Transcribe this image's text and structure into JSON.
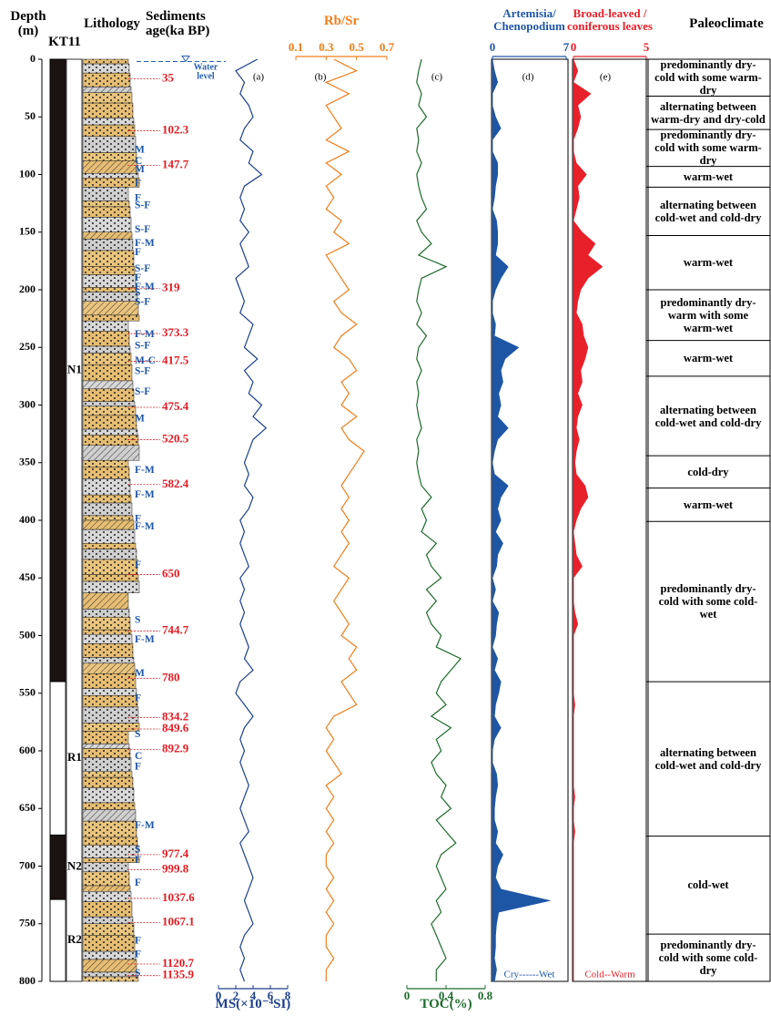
{
  "chart_data": {
    "type": "well-log",
    "depth_title": "Depth\n(m)",
    "core_title": "KT11",
    "lithology_title": "Lithology",
    "age_title": "Sediments\nage(ka BP)",
    "paleoclimate_title": "Paleoclimate",
    "ylim": [
      0,
      800
    ],
    "yticks": [
      0,
      50,
      100,
      150,
      200,
      250,
      300,
      350,
      400,
      450,
      500,
      550,
      600,
      650,
      700,
      750,
      800
    ],
    "depth": [
      0,
      10,
      20,
      30,
      40,
      50,
      60,
      70,
      80,
      90,
      100,
      110,
      120,
      130,
      140,
      150,
      160,
      170,
      180,
      190,
      200,
      210,
      220,
      230,
      240,
      250,
      260,
      270,
      280,
      290,
      300,
      310,
      320,
      330,
      340,
      350,
      360,
      370,
      380,
      390,
      400,
      410,
      420,
      430,
      440,
      450,
      460,
      470,
      480,
      490,
      500,
      510,
      520,
      530,
      540,
      550,
      560,
      570,
      580,
      590,
      600,
      610,
      620,
      630,
      640,
      650,
      660,
      670,
      680,
      690,
      700,
      710,
      720,
      730,
      740,
      750,
      760,
      770,
      780,
      790,
      800
    ],
    "series": [
      {
        "name": "MS(×10⁻⁴SI)",
        "letter": "(a)",
        "color": "#1b3f8b",
        "type": "line",
        "axis": "bottom",
        "xlim": [
          0,
          8
        ],
        "xticks": [
          0,
          2,
          4,
          6,
          8
        ],
        "values": [
          4.5,
          2,
          3,
          2.5,
          3.5,
          4,
          3,
          2.5,
          4,
          3.5,
          5,
          3,
          2.5,
          3,
          2.5,
          3.5,
          2.5,
          3,
          3.5,
          2,
          2.5,
          3,
          2.5,
          4,
          3.5,
          3,
          4.5,
          3,
          4,
          3.5,
          5,
          4,
          5.5,
          4,
          3.5,
          3,
          3.5,
          3,
          4,
          3.5,
          2.5,
          3,
          2.5,
          3,
          3.5,
          2.5,
          3,
          2.5,
          3,
          2.5,
          3,
          3.5,
          3,
          4,
          2.5,
          2,
          3,
          4,
          3,
          2.5,
          3,
          2.5,
          3,
          3.5,
          3,
          2.5,
          3,
          3.5,
          2.5,
          3,
          3.5,
          4,
          3.5,
          3,
          3.5,
          4,
          3,
          2.5,
          3,
          2.5,
          3
        ]
      },
      {
        "name": "Rb/Sr",
        "letter": "(b)",
        "color": "#f07d1a",
        "type": "line",
        "axis": "top",
        "xlim": [
          0.1,
          0.7
        ],
        "xticks": [
          0.1,
          0.3,
          0.5,
          0.7
        ],
        "values": [
          0.35,
          0.5,
          0.3,
          0.45,
          0.3,
          0.35,
          0.4,
          0.3,
          0.45,
          0.3,
          0.4,
          0.3,
          0.35,
          0.3,
          0.4,
          0.35,
          0.45,
          0.3,
          0.35,
          0.4,
          0.45,
          0.35,
          0.4,
          0.5,
          0.4,
          0.35,
          0.45,
          0.5,
          0.4,
          0.45,
          0.4,
          0.5,
          0.4,
          0.45,
          0.55,
          0.5,
          0.45,
          0.4,
          0.45,
          0.4,
          0.45,
          0.4,
          0.45,
          0.4,
          0.35,
          0.45,
          0.4,
          0.35,
          0.4,
          0.45,
          0.4,
          0.5,
          0.45,
          0.5,
          0.4,
          0.45,
          0.5,
          0.35,
          0.3,
          0.35,
          0.3,
          0.35,
          0.4,
          0.3,
          0.35,
          0.3,
          0.35,
          0.3,
          0.35,
          0.3,
          0.3,
          0.35,
          0.3,
          0.35,
          0.3,
          0.35,
          0.3,
          0.3,
          0.35,
          0.3,
          0.3
        ]
      },
      {
        "name": "TOC(%)",
        "letter": "(c)",
        "color": "#1d6b2c",
        "type": "line",
        "axis": "bottom",
        "xlim": [
          0,
          0.8
        ],
        "xticks": [
          0,
          0.4,
          0.8
        ],
        "values": [
          0.15,
          0.12,
          0.1,
          0.15,
          0.12,
          0.2,
          0.1,
          0.12,
          0.1,
          0.15,
          0.1,
          0.12,
          0.15,
          0.2,
          0.1,
          0.15,
          0.25,
          0.12,
          0.4,
          0.15,
          0.12,
          0.1,
          0.15,
          0.1,
          0.2,
          0.12,
          0.1,
          0.15,
          0.1,
          0.12,
          0.1,
          0.12,
          0.15,
          0.1,
          0.12,
          0.1,
          0.12,
          0.15,
          0.25,
          0.15,
          0.2,
          0.15,
          0.3,
          0.2,
          0.25,
          0.35,
          0.2,
          0.3,
          0.2,
          0.25,
          0.35,
          0.3,
          0.55,
          0.45,
          0.35,
          0.3,
          0.4,
          0.25,
          0.45,
          0.3,
          0.35,
          0.25,
          0.3,
          0.4,
          0.35,
          0.45,
          0.3,
          0.4,
          0.5,
          0.35,
          0.3,
          0.35,
          0.4,
          0.3,
          0.35,
          0.25,
          0.3,
          0.35,
          0.4,
          0.3,
          0.3
        ]
      },
      {
        "name": "Artemisia/\nChenopodium",
        "letter": "(d)",
        "note": "Cry------Wet",
        "color": "#1e56a6",
        "type": "area",
        "axis": "top",
        "xlim": [
          0,
          7
        ],
        "xticks": [
          0,
          7
        ],
        "values": [
          0,
          0.2,
          0.5,
          0,
          0,
          0.3,
          0.8,
          0,
          0,
          0.5,
          0.5,
          0.3,
          0.2,
          0,
          0.4,
          0.5,
          0.5,
          0.3,
          1.5,
          0.8,
          0.3,
          0,
          0,
          0.3,
          0.2,
          2.5,
          1.2,
          0.8,
          1,
          0.6,
          0.8,
          0.5,
          1.5,
          0.5,
          0.2,
          0,
          0.2,
          1.5,
          0.8,
          0.5,
          0.8,
          0.3,
          1,
          0.5,
          0.4,
          0,
          0.3,
          0,
          0.6,
          0.4,
          0.3,
          0,
          0.5,
          0.2,
          0.8,
          0.6,
          0.3,
          0.2,
          0.8,
          0.2,
          0,
          0,
          0.4,
          0.5,
          0.3,
          0.2,
          0.2,
          0.5,
          0.3,
          1,
          0.5,
          0.3,
          0.8,
          5.5,
          0.6,
          0.4,
          0.3,
          0.3,
          0.2,
          0.4,
          0.2
        ]
      },
      {
        "name": "Broad-leaved /\nconiferous leaves",
        "letter": "(e)",
        "note": "Cold--Warm",
        "color": "#e8202a",
        "type": "area",
        "axis": "top",
        "xlim": [
          0,
          5
        ],
        "xticks": [
          0,
          5
        ],
        "values": [
          0,
          0.3,
          0,
          1.2,
          0.3,
          0.5,
          0.3,
          0,
          0,
          0.2,
          0.9,
          0.3,
          0.4,
          0.2,
          0,
          0.6,
          1.5,
          1,
          2,
          1,
          0.5,
          0.3,
          0.2,
          0.6,
          0.7,
          1,
          0.8,
          0.5,
          0.6,
          0.3,
          0.6,
          0.3,
          0.2,
          0.4,
          0.2,
          0.1,
          0.2,
          0.8,
          1,
          0.5,
          0.2,
          0,
          0.1,
          0.2,
          0.6,
          0,
          0,
          0,
          0.1,
          0.3,
          0,
          0,
          0,
          0,
          0,
          0,
          0.1,
          0,
          0,
          0,
          0,
          0,
          0,
          0,
          0.1,
          0,
          0,
          0.1,
          0,
          0,
          0,
          0,
          0,
          0,
          0,
          0,
          0,
          0,
          0,
          0,
          0
        ]
      }
    ],
    "units": [
      {
        "label": "N1",
        "top": 0,
        "bottom": 540,
        "color": "#1a1311"
      },
      {
        "label": "R1",
        "top": 540,
        "bottom": 673,
        "color": "#ffffff"
      },
      {
        "label": "N2",
        "top": 673,
        "bottom": 729,
        "color": "#1a1311"
      },
      {
        "label": "R2",
        "top": 729,
        "bottom": 800,
        "color": "#ffffff"
      }
    ],
    "water_level": {
      "label": "Water\nlevel",
      "depth": 2
    },
    "ages": [
      {
        "label": "35",
        "depth": 17
      },
      {
        "label": "102.3",
        "depth": 62
      },
      {
        "label": "147.7",
        "depth": 92
      },
      {
        "label": "319",
        "depth": 199
      },
      {
        "label": "373.3",
        "depth": 238
      },
      {
        "label": "417.5",
        "depth": 262
      },
      {
        "label": "475.4",
        "depth": 302
      },
      {
        "label": "520.5",
        "depth": 330
      },
      {
        "label": "582.4",
        "depth": 369
      },
      {
        "label": "650",
        "depth": 447
      },
      {
        "label": "744.7",
        "depth": 496
      },
      {
        "label": "780",
        "depth": 537
      },
      {
        "label": "834.2",
        "depth": 571
      },
      {
        "label": "849.6",
        "depth": 581
      },
      {
        "label": "892.9",
        "depth": 599
      },
      {
        "label": "977.4",
        "depth": 690
      },
      {
        "label": "999.8",
        "depth": 703
      },
      {
        "label": "1037.6",
        "depth": 728
      },
      {
        "label": "1067.1",
        "depth": 749
      },
      {
        "label": "1120.7",
        "depth": 785
      },
      {
        "label": "1135.9",
        "depth": 795
      }
    ],
    "grain_sizes": [
      {
        "label": "M",
        "depth": 79
      },
      {
        "label": "C",
        "depth": 89
      },
      {
        "label": "M",
        "depth": 96
      },
      {
        "label": "F",
        "depth": 108
      },
      {
        "label": "F",
        "depth": 121
      },
      {
        "label": "S-F",
        "depth": 127
      },
      {
        "label": "S-F",
        "depth": 148
      },
      {
        "label": "F-M",
        "depth": 160
      },
      {
        "label": "F",
        "depth": 168
      },
      {
        "label": "S-F",
        "depth": 182
      },
      {
        "label": "F",
        "depth": 190
      },
      {
        "label": "F-M",
        "depth": 198
      },
      {
        "label": "S",
        "depth": 203
      },
      {
        "label": "S-F",
        "depth": 211
      },
      {
        "label": "F-M",
        "depth": 239
      },
      {
        "label": "S-F",
        "depth": 249
      },
      {
        "label": "M-C",
        "depth": 262
      },
      {
        "label": "S-F",
        "depth": 271
      },
      {
        "label": "S-F",
        "depth": 289
      },
      {
        "label": "M",
        "depth": 312
      },
      {
        "label": "F-M",
        "depth": 357
      },
      {
        "label": "F-M",
        "depth": 378
      },
      {
        "label": "F",
        "depth": 399
      },
      {
        "label": "F-M",
        "depth": 406
      },
      {
        "label": "F",
        "depth": 439
      },
      {
        "label": "S",
        "depth": 487
      },
      {
        "label": "F-M",
        "depth": 504
      },
      {
        "label": "M",
        "depth": 533
      },
      {
        "label": "F",
        "depth": 555
      },
      {
        "label": "S",
        "depth": 586
      },
      {
        "label": "C",
        "depth": 605
      },
      {
        "label": "F",
        "depth": 614
      },
      {
        "label": "F-M",
        "depth": 665
      },
      {
        "label": "S",
        "depth": 686
      },
      {
        "label": "F",
        "depth": 695
      },
      {
        "label": "F",
        "depth": 715
      },
      {
        "label": "F",
        "depth": 765
      },
      {
        "label": "F",
        "depth": 777
      },
      {
        "label": "S",
        "depth": 793
      }
    ],
    "paleoclimate": [
      {
        "label": "predominantly dry-cold with some warm-dry",
        "top": 0,
        "bottom": 32
      },
      {
        "label": "alternating between warm-dry and dry-cold",
        "top": 32,
        "bottom": 61
      },
      {
        "label": "predominantly dry-cold with some warm-dry",
        "top": 61,
        "bottom": 93
      },
      {
        "label": "warm-wet",
        "top": 93,
        "bottom": 111
      },
      {
        "label": "alternating between cold-wet and cold-dry",
        "top": 111,
        "bottom": 153
      },
      {
        "label": "warm-wet",
        "top": 153,
        "bottom": 200
      },
      {
        "label": "predominantly dry-warm with some warm-wet",
        "top": 200,
        "bottom": 244
      },
      {
        "label": "warm-wet",
        "top": 244,
        "bottom": 275
      },
      {
        "label": "alternating between cold-wet and cold-dry",
        "top": 275,
        "bottom": 344
      },
      {
        "label": "cold-dry",
        "top": 344,
        "bottom": 372
      },
      {
        "label": "warm-wet",
        "top": 372,
        "bottom": 401
      },
      {
        "label": "predominantly dry-cold with some cold-wet",
        "top": 401,
        "bottom": 540
      },
      {
        "label": "alternating between cold-wet and cold-dry",
        "top": 540,
        "bottom": 674
      },
      {
        "label": "cold-wet",
        "top": 674,
        "bottom": 759
      },
      {
        "label": "predominantly dry-cold with some cold-dry",
        "top": 759,
        "bottom": 800
      }
    ]
  }
}
